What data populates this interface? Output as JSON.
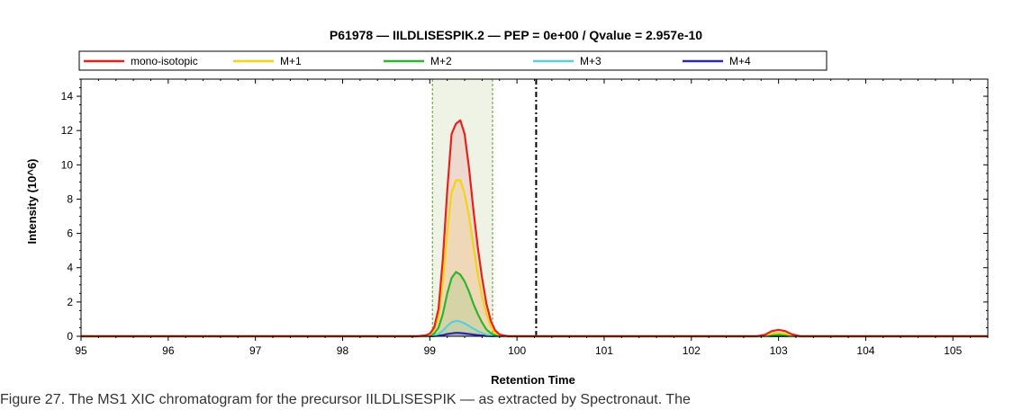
{
  "chart_data": {
    "type": "area",
    "title": "P61978  —  IILDLISESPIK.2  —  PEP = 0e+00 / Qvalue = 2.957e-10",
    "xlabel": "Retention Time",
    "ylabel": "Intensity (10^6)",
    "xlim": [
      95,
      105.4
    ],
    "ylim": [
      0,
      15
    ],
    "xticks": [
      "95",
      "96",
      "97",
      "98",
      "99",
      "100",
      "101",
      "102",
      "103",
      "104",
      "105"
    ],
    "yticks": [
      "0",
      "2",
      "4",
      "6",
      "8",
      "10",
      "12",
      "14"
    ],
    "grid": false,
    "legend_placement": "top",
    "integration_window": [
      99.03,
      99.72
    ],
    "marker_line_x": 100.22,
    "x": [
      95,
      98.85,
      98.95,
      99.0,
      99.05,
      99.1,
      99.15,
      99.2,
      99.25,
      99.3,
      99.35,
      99.4,
      99.45,
      99.5,
      99.55,
      99.6,
      99.65,
      99.7,
      99.75,
      99.8,
      99.9,
      102.75,
      102.85,
      102.92,
      103.0,
      103.08,
      103.15,
      103.25,
      105.4
    ],
    "series": [
      {
        "name": "mono-isotopic",
        "color": "#e8211d",
        "values": [
          0,
          0,
          0.05,
          0.15,
          0.5,
          1.6,
          4.5,
          8.5,
          11.8,
          12.4,
          12.6,
          11.8,
          9.8,
          7.4,
          5.2,
          3.4,
          1.9,
          0.9,
          0.35,
          0.1,
          0,
          0,
          0.1,
          0.3,
          0.38,
          0.3,
          0.12,
          0,
          0
        ]
      },
      {
        "name": "M+1",
        "color": "#f4d215",
        "values": [
          0,
          0,
          0.03,
          0.1,
          0.35,
          1.1,
          3.1,
          6.1,
          8.4,
          9.1,
          9.1,
          8.3,
          7.0,
          5.3,
          3.6,
          2.3,
          1.3,
          0.6,
          0.2,
          0.05,
          0,
          0,
          0.05,
          0.15,
          0.2,
          0.15,
          0.05,
          0,
          0
        ]
      },
      {
        "name": "M+2",
        "color": "#2db52d",
        "values": [
          0,
          0,
          0.02,
          0.05,
          0.15,
          0.5,
          1.3,
          2.5,
          3.4,
          3.75,
          3.6,
          3.2,
          2.6,
          1.9,
          1.3,
          0.8,
          0.4,
          0.18,
          0.06,
          0.02,
          0,
          0,
          0.03,
          0.07,
          0.1,
          0.07,
          0.03,
          0,
          0
        ]
      },
      {
        "name": "M+3",
        "color": "#5bcfd8",
        "values": [
          0,
          0,
          0,
          0.02,
          0.05,
          0.13,
          0.33,
          0.6,
          0.82,
          0.9,
          0.86,
          0.75,
          0.6,
          0.45,
          0.3,
          0.19,
          0.1,
          0.04,
          0.01,
          0,
          0,
          0,
          0,
          0.02,
          0.03,
          0.02,
          0,
          0,
          0
        ]
      },
      {
        "name": "M+4",
        "color": "#2a2ab0",
        "values": [
          0,
          0,
          0,
          0,
          0.01,
          0.03,
          0.07,
          0.13,
          0.17,
          0.2,
          0.19,
          0.16,
          0.13,
          0.1,
          0.07,
          0.04,
          0.02,
          0.01,
          0,
          0,
          0,
          0,
          0,
          0,
          0.01,
          0,
          0,
          0,
          0
        ]
      }
    ]
  },
  "caption": "Figure 27. The MS1 XIC chromatogram for the precursor IILDLISESPIK — as extracted by Spectronaut. The"
}
